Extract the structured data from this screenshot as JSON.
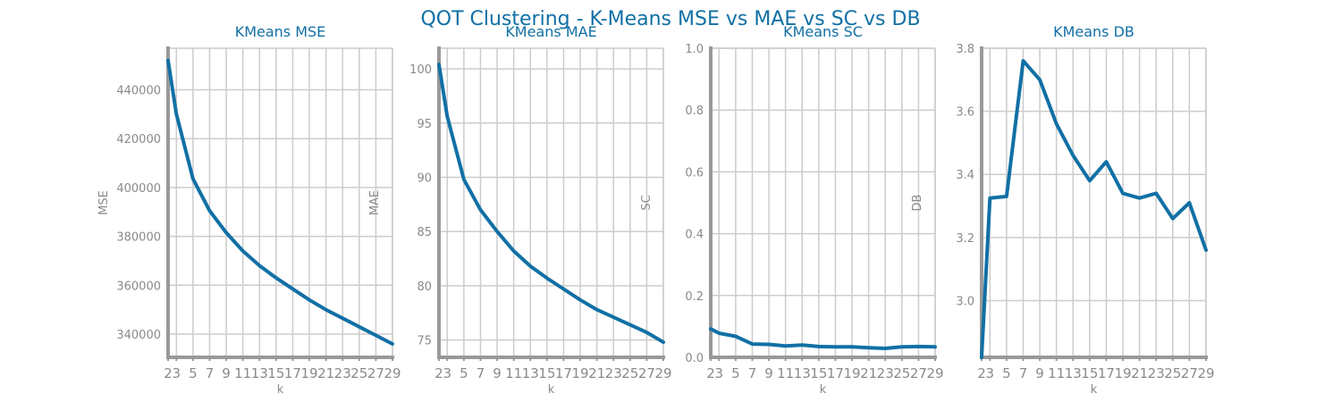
{
  "figure": {
    "title": "QOT Clustering - K-Means MSE vs MAE vs SC vs DB",
    "line_color": "#1170a5",
    "grid_color": "#cccccc",
    "text_color": "#8a8a8a"
  },
  "chart_data": [
    {
      "type": "line",
      "title": "KMeans MSE",
      "xlabel": "k",
      "ylabel": "MSE",
      "x": [
        2,
        3,
        5,
        7,
        9,
        11,
        13,
        15,
        17,
        19,
        21,
        23,
        25,
        27,
        29
      ],
      "xticks": [
        2,
        3,
        5,
        7,
        9,
        11,
        13,
        15,
        17,
        19,
        21,
        23,
        25,
        27,
        29
      ],
      "xlim": [
        2,
        29
      ],
      "ylim": [
        330500,
        457000
      ],
      "yticks": [
        340000,
        360000,
        380000,
        400000,
        420000,
        440000
      ],
      "ytick_labels": [
        "340000",
        "360000",
        "380000",
        "400000",
        "420000",
        "440000"
      ],
      "grid": true,
      "series": [
        {
          "values": [
            452000,
            430000,
            403500,
            390500,
            381500,
            374000,
            368000,
            363000,
            358500,
            354000,
            350000,
            346500,
            343000,
            339500,
            336000
          ]
        }
      ]
    },
    {
      "type": "line",
      "title": "KMeans MAE",
      "xlabel": "k",
      "ylabel": "MAE",
      "x": [
        2,
        3,
        5,
        7,
        9,
        11,
        13,
        15,
        17,
        19,
        21,
        23,
        25,
        27,
        29
      ],
      "xticks": [
        2,
        3,
        5,
        7,
        9,
        11,
        13,
        15,
        17,
        19,
        21,
        23,
        25,
        27,
        29
      ],
      "xlim": [
        2,
        29
      ],
      "ylim": [
        73.4,
        101.9
      ],
      "yticks": [
        75,
        80,
        85,
        90,
        95,
        100
      ],
      "ytick_labels": [
        "75",
        "80",
        "85",
        "90",
        "95",
        "100"
      ],
      "grid": true,
      "series": [
        {
          "values": [
            100.4,
            95.6,
            89.8,
            87.0,
            85.0,
            83.2,
            81.8,
            80.7,
            79.7,
            78.7,
            77.8,
            77.1,
            76.4,
            75.7,
            74.8
          ]
        }
      ]
    },
    {
      "type": "line",
      "title": "KMeans SC",
      "xlabel": "k",
      "ylabel": "SC",
      "x": [
        2,
        3,
        5,
        7,
        9,
        11,
        13,
        15,
        17,
        19,
        21,
        23,
        25,
        27,
        29
      ],
      "xticks": [
        2,
        3,
        5,
        7,
        9,
        11,
        13,
        15,
        17,
        19,
        21,
        23,
        25,
        27,
        29
      ],
      "xlim": [
        2,
        29
      ],
      "ylim": [
        0.0,
        1.0
      ],
      "yticks": [
        0.0,
        0.2,
        0.4,
        0.6,
        0.8,
        1.0
      ],
      "ytick_labels": [
        "0.0",
        "0.2",
        "0.4",
        "0.6",
        "0.8",
        "1.0"
      ],
      "grid": true,
      "series": [
        {
          "values": [
            0.092,
            0.078,
            0.068,
            0.043,
            0.042,
            0.037,
            0.04,
            0.035,
            0.034,
            0.034,
            0.031,
            0.029,
            0.034,
            0.035,
            0.034
          ]
        }
      ]
    },
    {
      "type": "line",
      "title": "KMeans DB",
      "xlabel": "k",
      "ylabel": "DB",
      "x": [
        2,
        3,
        5,
        7,
        9,
        11,
        13,
        15,
        17,
        19,
        21,
        23,
        25,
        27,
        29
      ],
      "xticks": [
        2,
        3,
        5,
        7,
        9,
        11,
        13,
        15,
        17,
        19,
        21,
        23,
        25,
        27,
        29
      ],
      "xlim": [
        2,
        29
      ],
      "ylim": [
        2.82,
        3.8
      ],
      "yticks": [
        3.0,
        3.2,
        3.4,
        3.6,
        3.8
      ],
      "ytick_labels": [
        "3.0",
        "3.2",
        "3.4",
        "3.6",
        "3.8"
      ],
      "grid": true,
      "series": [
        {
          "values": [
            2.82,
            3.325,
            3.33,
            3.76,
            3.7,
            3.56,
            3.46,
            3.38,
            3.44,
            3.34,
            3.325,
            3.34,
            3.26,
            3.31,
            3.16
          ]
        }
      ]
    }
  ]
}
